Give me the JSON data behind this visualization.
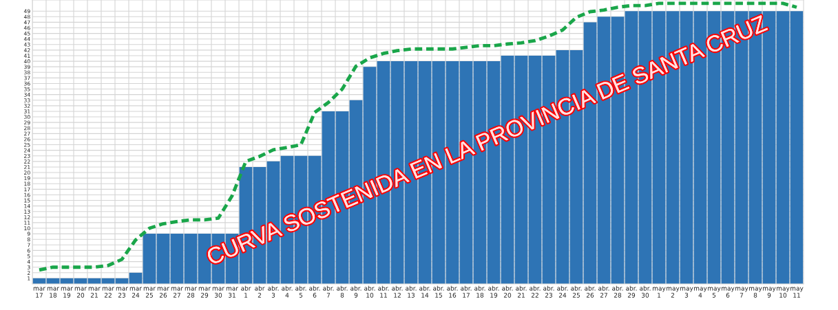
{
  "chart_data": {
    "type": "bar",
    "categories": [
      "mar\n17",
      "mar\n18",
      "mar\n19",
      "mar\n20",
      "mar\n21",
      "mar\n22",
      "mar\n23",
      "mar\n24",
      "mar\n25",
      "mar\n26",
      "mar\n27",
      "mar\n28",
      "mar\n29",
      "mar\n30",
      "mar\n31",
      "abr\n1",
      "abr\n2",
      "abr.\n3",
      "abr.\n4",
      "abr.\n5",
      "abr.\n6",
      "abr.\n7",
      "abr.\n8",
      "abr.\n9",
      "abr.\n10",
      "abr.\n11",
      "abr.\n12",
      "abr.\n13",
      "abr.\n14",
      "abr.\n15",
      "abr.\n16",
      "abr.\n17",
      "abr.\n18",
      "abr.\n19",
      "abr.\n20",
      "abr.\n21",
      "abr.\n22",
      "abr.\n23",
      "abr.\n24",
      "abr.\n25",
      "abr.\n26",
      "abr.\n27",
      "abr.\n28",
      "abr.\n29",
      "abr.\n30",
      "may\n1",
      "may\n2",
      "may\n3",
      "may\n4",
      "may\n5",
      "may\n6",
      "may\n7",
      "may\n8",
      "may\n9",
      "may\n10",
      "may\n11"
    ],
    "series": [
      {
        "color": "#2e74b5",
        "values": [
          1,
          1,
          1,
          1,
          1,
          1,
          1,
          2,
          9,
          9,
          9,
          9,
          9,
          9,
          9,
          21,
          21,
          22,
          23,
          23,
          23,
          31,
          31,
          33,
          39,
          40,
          40,
          40,
          40,
          40,
          40,
          40,
          40,
          40,
          41,
          41,
          41,
          41,
          42,
          42,
          47,
          48,
          48,
          49,
          49,
          49,
          49,
          49,
          49,
          49,
          49,
          49,
          49,
          49,
          49,
          49
        ]
      },
      {
        "type": "line",
        "color": "#1aa64a",
        "line_style": "dashed",
        "values": [
          2.5,
          3,
          3,
          3,
          3,
          3.3,
          4.4,
          7.9,
          10,
          10.8,
          11.2,
          11.5,
          11.5,
          11.8,
          15.8,
          22,
          22.9,
          24.1,
          24.5,
          25,
          30.8,
          32.6,
          35,
          39.1,
          40.6,
          41.4,
          41.9,
          42.2,
          42.2,
          42.2,
          42.2,
          42.5,
          42.8,
          42.8,
          43.1,
          43.3,
          43.7,
          44.5,
          45.6,
          47.9,
          48.9,
          49.2,
          49.7,
          50,
          50,
          50.4,
          50.4,
          50.4,
          50.4,
          50.4,
          50.4,
          50.4,
          50.4,
          50.4,
          50.4,
          49.7
        ]
      }
    ],
    "ylim": [
      0,
      51
    ],
    "yticks": [
      1,
      2,
      3,
      4,
      5,
      6,
      7,
      8,
      9,
      10,
      11,
      12,
      13,
      14,
      15,
      16,
      17,
      18,
      19,
      20,
      21,
      22,
      23,
      24,
      25,
      26,
      27,
      28,
      29,
      30,
      31,
      32,
      33,
      34,
      35,
      36,
      37,
      38,
      39,
      40,
      41,
      42,
      43,
      44,
      45,
      46,
      47,
      48,
      49
    ],
    "grid": true,
    "annotations": [
      "CURVA SOSTENIDA EN LA PROVINCIA DE SANTA CRUZ"
    ]
  }
}
